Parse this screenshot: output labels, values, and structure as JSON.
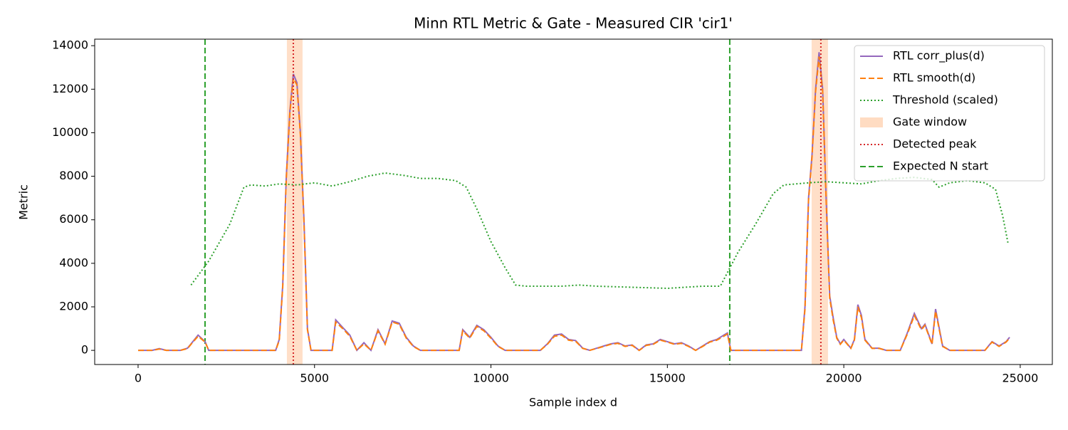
{
  "chart_data": {
    "type": "line",
    "title": "Minn RTL Metric & Gate - Measured CIR 'cir1'",
    "x_label": "Sample index d",
    "y_label": "Metric",
    "xlim": [
      -1230,
      25910
    ],
    "ylim": [
      -650,
      14300
    ],
    "xticks": [
      0,
      5000,
      10000,
      15000,
      20000,
      25000
    ],
    "yticks": [
      0,
      2000,
      4000,
      6000,
      8000,
      10000,
      12000,
      14000
    ],
    "legend": "upper right",
    "x": [
      0,
      400,
      600,
      800,
      1200,
      1400,
      1500,
      1700,
      1900,
      2000,
      3900,
      4000,
      4100,
      4200,
      4300,
      4400,
      4500,
      4600,
      4700,
      4800,
      4900,
      5500,
      5600,
      5800,
      6000,
      6200,
      6400,
      6600,
      6800,
      7000,
      7200,
      7400,
      7600,
      7800,
      8000,
      9100,
      9200,
      9400,
      9600,
      9800,
      10000,
      10200,
      10400,
      11400,
      11600,
      11800,
      12000,
      12200,
      12400,
      12600,
      12800,
      13000,
      13200,
      13400,
      13600,
      13800,
      14000,
      14200,
      14400,
      14600,
      14800,
      15000,
      15200,
      15400,
      15600,
      15800,
      16000,
      16200,
      16400,
      16600,
      16700,
      16800,
      18800,
      18900,
      19000,
      19100,
      19200,
      19300,
      19400,
      19500,
      19600,
      19700,
      19800,
      19900,
      20000,
      20200,
      20300,
      20400,
      20500,
      20600,
      20800,
      21000,
      21200,
      21600,
      21800,
      22000,
      22200,
      22300,
      22500,
      22600,
      22800,
      23000,
      24000,
      24200,
      24400,
      24600,
      24700
    ],
    "series": [
      {
        "name": "RTL corr_plus(d)",
        "color": "#9467bd",
        "linestyle": "solid",
        "values": [
          0,
          0,
          80,
          0,
          0,
          100,
          300,
          700,
          400,
          0,
          0,
          500,
          3000,
          8000,
          11000,
          12700,
          12300,
          10000,
          6000,
          1000,
          0,
          0,
          1400,
          1050,
          700,
          0,
          350,
          0,
          950,
          300,
          1350,
          1250,
          600,
          200,
          0,
          0,
          950,
          600,
          1150,
          950,
          600,
          200,
          0,
          0,
          300,
          700,
          750,
          500,
          450,
          100,
          0,
          100,
          200,
          300,
          350,
          200,
          250,
          0,
          250,
          300,
          500,
          400,
          300,
          350,
          200,
          0,
          200,
          400,
          500,
          700,
          800,
          0,
          0,
          2000,
          7000,
          9000,
          12000,
          13700,
          12000,
          7000,
          2500,
          1500,
          600,
          300,
          500,
          100,
          500,
          2100,
          1600,
          500,
          100,
          100,
          0,
          0,
          800,
          1700,
          1000,
          1200,
          300,
          1900,
          200,
          0,
          0,
          400,
          200,
          400,
          600
        ]
      },
      {
        "name": "RTL smooth(d)",
        "color": "#ff7f0e",
        "linestyle": "dashed",
        "values": [
          0,
          0,
          60,
          0,
          0,
          80,
          280,
          650,
          380,
          0,
          0,
          450,
          2900,
          7900,
          10900,
          12500,
          12200,
          9900,
          5900,
          950,
          0,
          0,
          1300,
          1000,
          650,
          0,
          300,
          0,
          900,
          280,
          1300,
          1200,
          560,
          180,
          0,
          0,
          900,
          560,
          1100,
          900,
          560,
          180,
          0,
          0,
          280,
          650,
          700,
          470,
          420,
          90,
          0,
          90,
          180,
          280,
          320,
          180,
          230,
          0,
          230,
          280,
          470,
          380,
          280,
          320,
          180,
          0,
          180,
          380,
          470,
          650,
          750,
          0,
          0,
          1900,
          6900,
          8900,
          11900,
          13500,
          11900,
          6900,
          2400,
          1400,
          560,
          280,
          470,
          90,
          470,
          2000,
          1500,
          470,
          90,
          90,
          0,
          0,
          750,
          1600,
          950,
          1150,
          280,
          1800,
          180,
          0,
          0,
          380,
          180,
          380,
          560
        ]
      },
      {
        "name": "Threshold (scaled)",
        "color": "#2ca02c",
        "linestyle": "dotted",
        "x": [
          1500,
          2000,
          2600,
          3000,
          3200,
          3600,
          4000,
          4500,
          5000,
          5500,
          6000,
          6500,
          7000,
          7500,
          8000,
          8500,
          9000,
          9300,
          9600,
          10000,
          10400,
          10700,
          11000,
          12000,
          12500,
          13000,
          14000,
          15000,
          16000,
          16500,
          17000,
          17500,
          18000,
          18300,
          19000,
          19500,
          20000,
          20500,
          21000,
          21500,
          22000,
          22500,
          22700,
          23000,
          23500,
          24000,
          24300,
          24500,
          24650
        ],
        "values": [
          3000,
          4100,
          5800,
          7500,
          7600,
          7550,
          7650,
          7600,
          7700,
          7550,
          7750,
          8000,
          8150,
          8050,
          7900,
          7900,
          7800,
          7500,
          6500,
          5000,
          3800,
          3000,
          2950,
          2950,
          3000,
          2950,
          2900,
          2850,
          2950,
          2950,
          4500,
          5800,
          7200,
          7600,
          7700,
          7750,
          7700,
          7650,
          7800,
          7900,
          7950,
          7850,
          7500,
          7700,
          7800,
          7700,
          7400,
          6200,
          4950
        ]
      }
    ],
    "gate_window": {
      "name": "Gate window",
      "color": "#ffdcc2",
      "ranges": [
        [
          4217,
          4661
        ],
        [
          19088,
          19552
        ]
      ]
    },
    "detected_peak": {
      "name": "Detected peak",
      "color": "#d62728",
      "linestyle": "dotted",
      "x": [
        4399,
        19350
      ]
    },
    "expected_start": {
      "name": "Expected N start",
      "color": "#2ca02c",
      "linestyle": "dashed",
      "x": [
        1897,
        16768
      ]
    }
  }
}
